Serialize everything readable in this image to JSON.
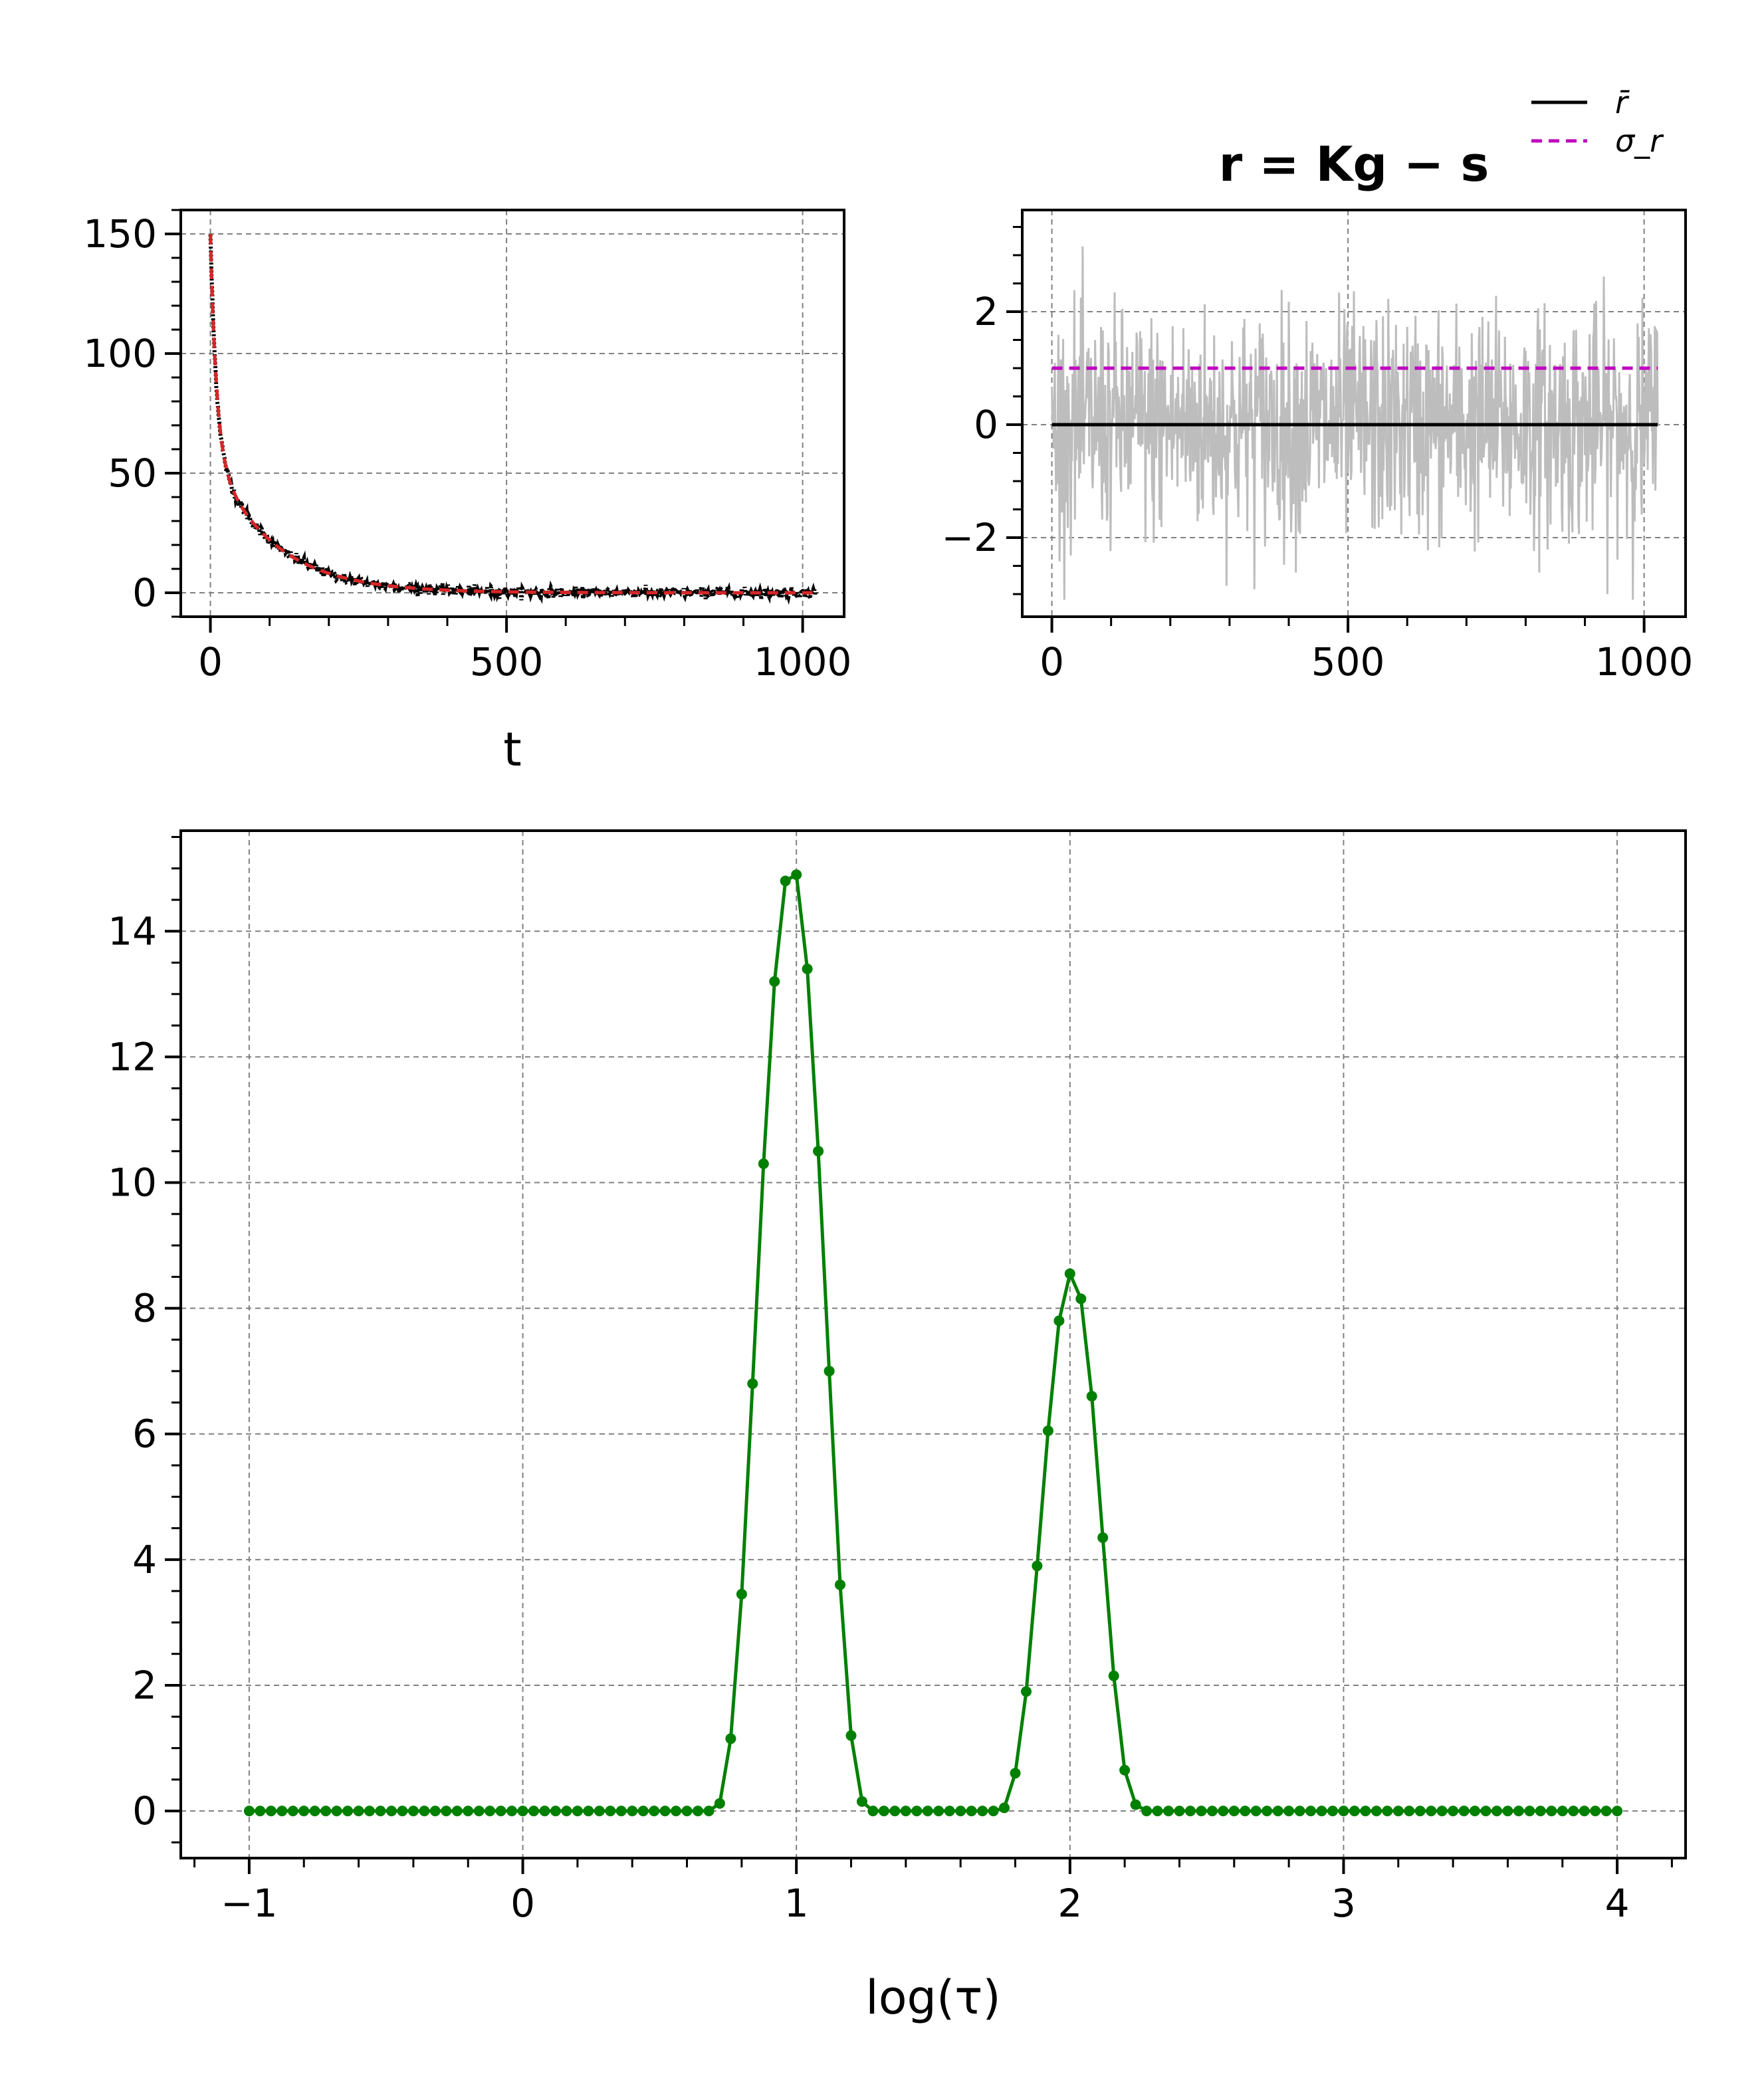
{
  "colors": {
    "decay_raw": "#000000",
    "decay_fit": "#d62728",
    "residual": "#bdbdbd",
    "mean_line": "#000000",
    "sigma_line": "#c000c0",
    "distribution": "#008000",
    "grid": "#808080"
  },
  "chart_data": [
    {
      "type": "line",
      "subplot": "top-left",
      "title": "",
      "xlabel": "t",
      "ylabel": "",
      "xlim": [
        -50,
        1070
      ],
      "ylim": [
        -10,
        160
      ],
      "xticks": [
        0,
        500,
        1000
      ],
      "xtick_labels": [
        "0",
        "500",
        "1000"
      ],
      "yticks": [
        0,
        50,
        100,
        150
      ],
      "ytick_labels": [
        "0",
        "50",
        "100",
        "150"
      ],
      "grid": true,
      "series": [
        {
          "role": "noisy signal",
          "style": "black dots",
          "model": "A * (0.6*exp(-t/10) + 0.4*exp(-t/100)) + noise",
          "t_range": [
            0,
            1023
          ],
          "x": [
            0,
            5,
            10,
            20,
            30,
            50,
            75,
            100,
            150,
            200,
            300,
            400,
            500,
            600,
            700,
            800,
            900,
            1023
          ],
          "y": [
            150,
            109,
            82,
            51,
            38,
            28.5,
            23.2,
            19.2,
            13.2,
            9.0,
            4.2,
            2.0,
            0.9,
            0.4,
            0.2,
            0.1,
            0.0,
            0.0
          ]
        },
        {
          "role": "fit",
          "style": "red dashed",
          "x": [
            0,
            5,
            10,
            20,
            30,
            50,
            75,
            100,
            150,
            200,
            300,
            400,
            500,
            600,
            700,
            800,
            900,
            1023
          ],
          "y": [
            150,
            109,
            82,
            51,
            38,
            28.5,
            23.2,
            19.2,
            13.2,
            9.0,
            4.2,
            2.0,
            0.9,
            0.4,
            0.2,
            0.1,
            0.0,
            0.0
          ]
        }
      ]
    },
    {
      "type": "line",
      "subplot": "top-right",
      "title": "r = Kg − s",
      "xlabel": "",
      "ylabel": "",
      "xlim": [
        -50,
        1070
      ],
      "ylim": [
        -3.4,
        3.8
      ],
      "xticks": [
        0,
        500,
        1000
      ],
      "xtick_labels": [
        "0",
        "500",
        "1000"
      ],
      "yticks": [
        -2,
        0,
        2
      ],
      "ytick_labels": [
        "−2",
        "0",
        "2"
      ],
      "grid": true,
      "legend": {
        "placement": "above-right",
        "entries": [
          {
            "label": "r̄",
            "style": "black solid"
          },
          {
            "label": "σ_r",
            "style": "magenta dashed"
          }
        ]
      },
      "series": [
        {
          "name": "r̄",
          "style": "black solid",
          "x": [
            0,
            1023
          ],
          "y": [
            0,
            0
          ]
        },
        {
          "name": "σ_r",
          "style": "magenta dashed",
          "x": [
            0,
            1023
          ],
          "y": [
            1.0,
            1.0
          ]
        },
        {
          "role": "residuals",
          "style": "light gray thin line",
          "distribution": "gaussian noise, mean 0, std 1",
          "t_range": [
            0,
            1023
          ],
          "range_observed": [
            -3.1,
            3.55
          ]
        }
      ]
    },
    {
      "type": "line",
      "subplot": "bottom",
      "title": "",
      "xlabel": "log(τ)",
      "ylabel": "",
      "xlim": [
        -1.25,
        4.25
      ],
      "ylim": [
        -0.75,
        15.6
      ],
      "xticks": [
        -1,
        0,
        1,
        2,
        3,
        4
      ],
      "xtick_labels": [
        "−1",
        "0",
        "1",
        "2",
        "3",
        "4"
      ],
      "yticks": [
        0,
        2,
        4,
        6,
        8,
        10,
        12,
        14
      ],
      "ytick_labels": [
        "0",
        "2",
        "4",
        "6",
        "8",
        "10",
        "12",
        "14"
      ],
      "grid": true,
      "series": [
        {
          "style": "green line with dot markers",
          "x_range": [
            -1,
            4
          ],
          "n_points": 126,
          "peak_points": [
            {
              "x": 0.72,
              "y": 0.12
            },
            {
              "x": 0.76,
              "y": 1.15
            },
            {
              "x": 0.8,
              "y": 3.45
            },
            {
              "x": 0.84,
              "y": 6.8
            },
            {
              "x": 0.88,
              "y": 10.3
            },
            {
              "x": 0.92,
              "y": 13.2
            },
            {
              "x": 0.96,
              "y": 14.8
            },
            {
              "x": 1.0,
              "y": 14.9
            },
            {
              "x": 1.04,
              "y": 13.4
            },
            {
              "x": 1.08,
              "y": 10.5
            },
            {
              "x": 1.12,
              "y": 7.0
            },
            {
              "x": 1.16,
              "y": 3.6
            },
            {
              "x": 1.2,
              "y": 1.2
            },
            {
              "x": 1.24,
              "y": 0.15
            },
            {
              "x": 1.76,
              "y": 0.05
            },
            {
              "x": 1.8,
              "y": 0.6
            },
            {
              "x": 1.84,
              "y": 1.9
            },
            {
              "x": 1.88,
              "y": 3.9
            },
            {
              "x": 1.92,
              "y": 6.05
            },
            {
              "x": 1.96,
              "y": 7.8
            },
            {
              "x": 2.0,
              "y": 8.55
            },
            {
              "x": 2.04,
              "y": 8.15
            },
            {
              "x": 2.08,
              "y": 6.6
            },
            {
              "x": 2.12,
              "y": 4.35
            },
            {
              "x": 2.16,
              "y": 2.15
            },
            {
              "x": 2.2,
              "y": 0.65
            },
            {
              "x": 2.24,
              "y": 0.1
            }
          ]
        }
      ]
    }
  ]
}
